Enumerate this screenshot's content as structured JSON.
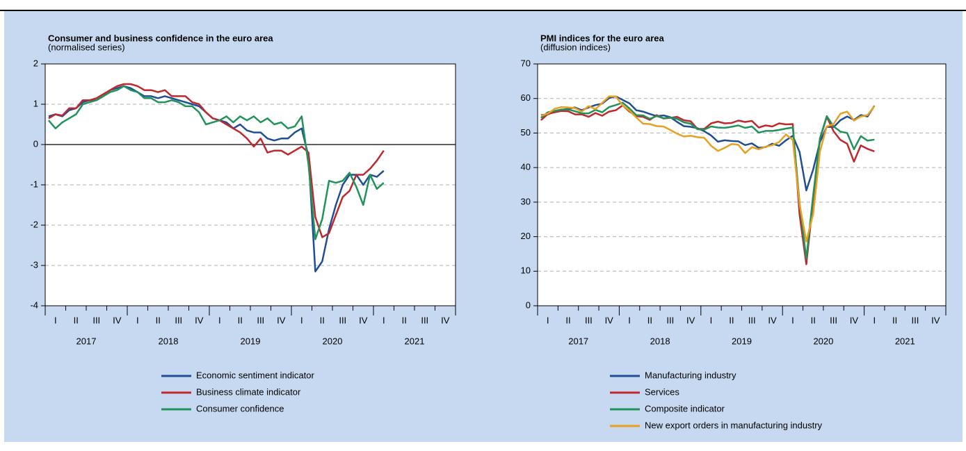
{
  "chart_data": [
    {
      "type": "line",
      "title": "Consumer and business confidence in the euro area",
      "subtitle": "(normalised series)",
      "years": [
        "2017",
        "2018",
        "2019",
        "2020",
        "2021"
      ],
      "quarters": [
        "I",
        "II",
        "III",
        "IV"
      ],
      "ylim": [
        -4,
        2
      ],
      "yticks": [
        -4,
        -3,
        -2,
        -1,
        0,
        1,
        2
      ],
      "grid": true,
      "zero_line": true,
      "series": [
        {
          "name": "Economic sentiment indicator",
          "color": "#1f4e96",
          "values": [
            0.7,
            0.75,
            0.7,
            0.85,
            0.9,
            1.05,
            1.1,
            1.1,
            1.2,
            1.35,
            1.4,
            1.45,
            1.4,
            1.3,
            1.2,
            1.2,
            1.15,
            1.2,
            1.15,
            1.1,
            1.05,
            1.0,
            0.95,
            0.8,
            0.65,
            0.6,
            0.55,
            0.4,
            0.5,
            0.35,
            0.3,
            0.3,
            0.15,
            0.1,
            0.15,
            0.15,
            0.3,
            0.4,
            -0.3,
            -3.15,
            -2.9,
            -2.1,
            -1.5,
            -1.0,
            -0.75,
            -0.75,
            -1.0,
            -0.75,
            -0.8,
            -0.65
          ]
        },
        {
          "name": "Business climate indicator",
          "color": "#c0282d",
          "values": [
            0.65,
            0.75,
            0.72,
            0.9,
            0.9,
            1.1,
            1.1,
            1.15,
            1.25,
            1.35,
            1.45,
            1.5,
            1.5,
            1.45,
            1.35,
            1.35,
            1.3,
            1.35,
            1.2,
            1.2,
            1.2,
            1.05,
            1.0,
            0.8,
            0.65,
            0.6,
            0.5,
            0.4,
            0.3,
            0.15,
            -0.05,
            0.15,
            -0.2,
            -0.15,
            -0.15,
            -0.25,
            -0.15,
            -0.05,
            -0.2,
            -1.8,
            -2.3,
            -2.2,
            -1.75,
            -1.3,
            -1.15,
            -0.75,
            -0.75,
            -0.6,
            -0.4,
            -0.15
          ]
        },
        {
          "name": "Consumer confidence",
          "color": "#20935a",
          "values": [
            0.6,
            0.4,
            0.55,
            0.65,
            0.75,
            1.0,
            1.05,
            1.1,
            1.2,
            1.3,
            1.35,
            1.45,
            1.35,
            1.3,
            1.15,
            1.15,
            1.05,
            1.05,
            1.1,
            1.05,
            0.95,
            0.95,
            0.8,
            0.5,
            0.55,
            0.6,
            0.7,
            0.55,
            0.7,
            0.6,
            0.7,
            0.55,
            0.65,
            0.5,
            0.55,
            0.4,
            0.45,
            0.7,
            -0.5,
            -2.35,
            -1.85,
            -0.9,
            -0.95,
            -0.9,
            -0.7,
            -1.05,
            -1.5,
            -0.75,
            -1.1,
            -0.95
          ]
        }
      ]
    },
    {
      "type": "line",
      "title": "PMI indices for the euro area",
      "subtitle": "(diffusion indices)",
      "years": [
        "2017",
        "2018",
        "2019",
        "2020",
        "2021"
      ],
      "quarters": [
        "I",
        "II",
        "III",
        "IV"
      ],
      "ylim": [
        0,
        70
      ],
      "yticks": [
        0,
        10,
        20,
        30,
        40,
        50,
        60,
        70
      ],
      "grid": true,
      "zero_line": false,
      "series": [
        {
          "name": "Manufacturing industry",
          "color": "#1f4e96",
          "values": [
            55.2,
            55.4,
            56.2,
            56.7,
            57.0,
            57.4,
            56.6,
            57.4,
            58.1,
            58.5,
            60.1,
            60.6,
            59.6,
            58.6,
            56.6,
            56.2,
            55.5,
            54.9,
            55.1,
            54.6,
            53.2,
            52.0,
            51.8,
            51.4,
            50.5,
            49.3,
            47.5,
            47.9,
            47.7,
            47.6,
            46.5,
            47.0,
            45.7,
            45.9,
            46.9,
            46.3,
            47.9,
            49.2,
            44.5,
            33.4,
            39.4,
            47.4,
            51.8,
            51.7,
            53.7,
            54.8,
            53.8,
            55.2,
            54.8,
            57.9
          ]
        },
        {
          "name": "Services",
          "color": "#c0282d",
          "values": [
            53.7,
            55.5,
            56.0,
            56.4,
            56.3,
            55.4,
            55.4,
            54.7,
            55.8,
            55.0,
            56.2,
            56.6,
            58.0,
            56.2,
            54.9,
            54.7,
            53.8,
            55.2,
            54.2,
            54.4,
            54.7,
            53.7,
            53.4,
            51.2,
            51.2,
            52.8,
            53.3,
            52.8,
            52.9,
            53.6,
            53.2,
            53.5,
            51.6,
            52.2,
            51.9,
            52.8,
            52.5,
            52.6,
            26.4,
            12.0,
            30.5,
            48.3,
            54.7,
            50.5,
            48.0,
            46.9,
            41.7,
            46.4,
            45.4,
            44.7
          ]
        },
        {
          "name": "Composite indicator",
          "color": "#20935a",
          "values": [
            54.4,
            56.0,
            56.4,
            56.8,
            56.8,
            56.3,
            55.7,
            55.7,
            56.7,
            56.0,
            57.5,
            58.1,
            58.8,
            57.1,
            55.2,
            55.1,
            54.1,
            54.9,
            54.3,
            54.5,
            54.1,
            53.1,
            52.7,
            51.1,
            51.0,
            51.9,
            51.6,
            51.5,
            51.8,
            52.2,
            51.5,
            51.9,
            50.1,
            50.6,
            50.6,
            50.9,
            51.3,
            51.6,
            29.7,
            13.6,
            31.9,
            48.5,
            54.9,
            51.9,
            50.4,
            50.0,
            45.3,
            49.1,
            47.8,
            48.1
          ]
        },
        {
          "name": "New export orders in manufacturing industry",
          "color": "#e8a020",
          "values": [
            55.0,
            55.6,
            57.0,
            57.5,
            57.4,
            57.2,
            56.2,
            57.8,
            56.9,
            58.7,
            60.6,
            60.6,
            58.0,
            56.5,
            54.5,
            52.7,
            52.6,
            52.0,
            51.9,
            50.9,
            49.8,
            49.0,
            49.2,
            48.8,
            48.6,
            46.3,
            44.8,
            45.7,
            46.8,
            46.6,
            44.2,
            45.9,
            45.3,
            46.0,
            46.5,
            47.4,
            49.6,
            48.0,
            29.4,
            18.6,
            26.5,
            44.7,
            51.9,
            52.6,
            55.6,
            56.2,
            53.6,
            54.8,
            55.2,
            57.8
          ]
        }
      ]
    }
  ]
}
